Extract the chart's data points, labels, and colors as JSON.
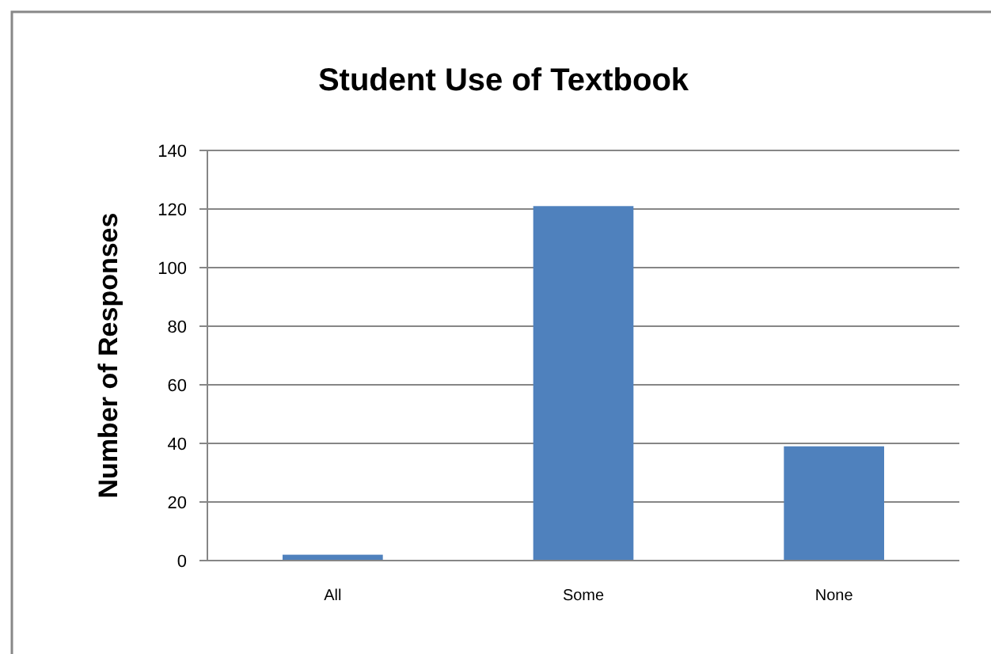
{
  "chart_data": {
    "type": "bar",
    "title": "Student Use of Textbook",
    "ylabel": "Number of Responses",
    "categories": [
      "All",
      "Some",
      "None"
    ],
    "values": [
      2,
      121,
      39
    ],
    "color": "#4f81bd",
    "ylim": [
      0,
      140
    ],
    "yticks": [
      0,
      20,
      40,
      60,
      80,
      100,
      120,
      140
    ],
    "grid": "y"
  }
}
